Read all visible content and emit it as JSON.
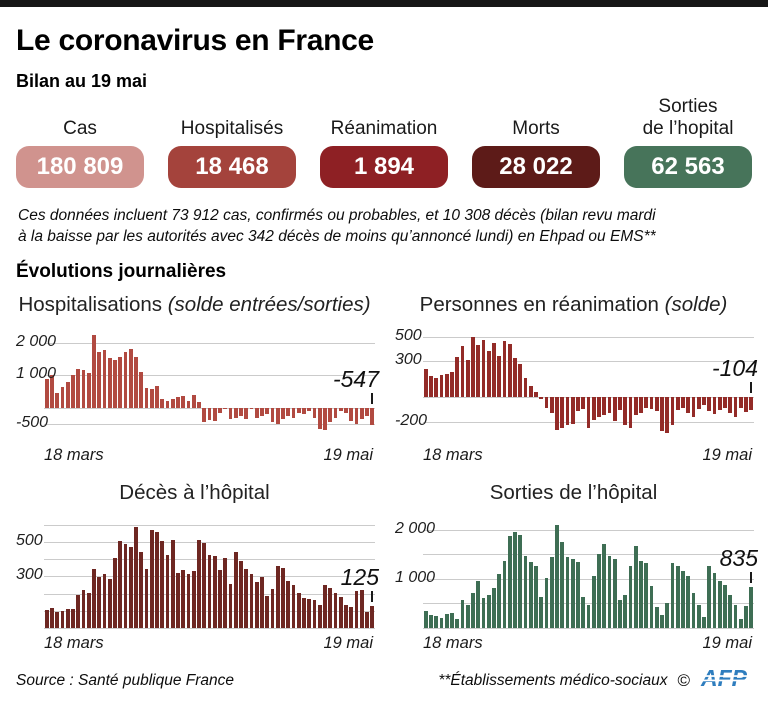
{
  "header": {
    "title": "Le coronavirus en France",
    "subtitle": "Bilan au 19 mai"
  },
  "stats": [
    {
      "label": "Cas",
      "value": "180 809",
      "color": "#d0938e"
    },
    {
      "label": "Hospitalisés",
      "value": "18 468",
      "color": "#a4433c"
    },
    {
      "label": "Réanimation",
      "value": "1 894",
      "color": "#8e2024"
    },
    {
      "label": "Morts",
      "value": "28 022",
      "color": "#5d1b18"
    },
    {
      "label_line1": "Sorties",
      "label_line2": "de l’hopital",
      "value": "62 563",
      "color": "#47745a"
    }
  ],
  "note": {
    "line1": "Ces données incluent 73 912 cas, confirmés ou probables, et 10 308 décès (bilan revu mardi",
    "line2": "à la baisse par les autorités avec 342 décès de moins qu’annoncé lundi) en Ehpad ou EMS**"
  },
  "section_title": "Évolutions journalières",
  "chart_data": [
    {
      "type": "bar",
      "title": "Hospitalisations",
      "subtitle": "(solde entrées/sorties)",
      "color": "#b14a41",
      "x_start_label": "18 mars",
      "x_end_label": "19 mai",
      "ylim": [
        -1000,
        2500
      ],
      "gridlines": [
        2000,
        1000,
        0,
        -500
      ],
      "yticks": [
        {
          "v": 2000,
          "label": "2 000"
        },
        {
          "v": 1000,
          "label": "1 000"
        },
        {
          "v": -500,
          "label": "-500"
        }
      ],
      "annotation": "-547",
      "values": [
        900,
        1000,
        440,
        640,
        800,
        1020,
        1180,
        1160,
        1080,
        2240,
        1720,
        1780,
        1520,
        1480,
        1560,
        1720,
        1820,
        1560,
        1100,
        620,
        560,
        660,
        260,
        210,
        260,
        320,
        360,
        210,
        400,
        160,
        -450,
        -380,
        -420,
        -160,
        -40,
        -360,
        -310,
        -260,
        -360,
        -60,
        -310,
        -260,
        -210,
        -460,
        -510,
        -360,
        -260,
        -310,
        -160,
        -210,
        -110,
        -310,
        -660,
        -710,
        -460,
        -310,
        -110,
        -160,
        -410,
        -510,
        -360,
        -250,
        -547
      ]
    },
    {
      "type": "bar",
      "title": "Personnes en réanimation",
      "subtitle": "(solde)",
      "color": "#932b28",
      "x_start_label": "18 mars",
      "x_end_label": "19 mai",
      "ylim": [
        -350,
        580
      ],
      "gridlines": [
        500,
        300,
        0,
        -200
      ],
      "yticks": [
        {
          "v": 500,
          "label": "500"
        },
        {
          "v": 300,
          "label": "300"
        },
        {
          "v": -200,
          "label": "-200"
        }
      ],
      "annotation": "-104",
      "values": [
        230,
        175,
        160,
        185,
        195,
        205,
        330,
        420,
        310,
        500,
        430,
        470,
        380,
        445,
        340,
        465,
        435,
        320,
        275,
        160,
        95,
        45,
        -15,
        -85,
        -125,
        -270,
        -250,
        -230,
        -220,
        -110,
        -95,
        -250,
        -185,
        -160,
        -145,
        -125,
        -195,
        -105,
        -225,
        -255,
        -145,
        -125,
        -85,
        -95,
        -115,
        -280,
        -290,
        -230,
        -105,
        -85,
        -125,
        -165,
        -95,
        -60,
        -115,
        -135,
        -100,
        -85,
        -130,
        -160,
        -90,
        -120,
        -104
      ]
    },
    {
      "type": "bar",
      "title": "Décès à l’hôpital",
      "subtitle": "",
      "color": "#6e2722",
      "x_start_label": "18 mars",
      "x_end_label": "19 mai",
      "ylim": [
        0,
        660
      ],
      "gridlines": [
        600,
        500,
        400,
        300,
        200,
        100,
        0
      ],
      "yticks": [
        {
          "v": 500,
          "label": "500"
        },
        {
          "v": 300,
          "label": "300"
        }
      ],
      "annotation": "125",
      "values": [
        105,
        115,
        90,
        100,
        110,
        112,
        190,
        220,
        205,
        345,
        295,
        315,
        285,
        410,
        505,
        490,
        475,
        590,
        445,
        345,
        570,
        560,
        505,
        425,
        515,
        320,
        335,
        315,
        330,
        515,
        495,
        425,
        420,
        335,
        410,
        255,
        445,
        390,
        345,
        315,
        270,
        295,
        185,
        225,
        360,
        350,
        275,
        250,
        205,
        175,
        170,
        160,
        135,
        250,
        235,
        205,
        180,
        135,
        120,
        215,
        220,
        95,
        125
      ]
    },
    {
      "type": "bar",
      "title": "Sorties de l’hôpital",
      "subtitle": "",
      "color": "#3e6e54",
      "x_start_label": "18 mars",
      "x_end_label": "19 mai",
      "ylim": [
        0,
        2300
      ],
      "gridlines": [
        2000,
        1500,
        1000,
        500,
        0
      ],
      "yticks": [
        {
          "v": 2000,
          "label": "2 000"
        },
        {
          "v": 1000,
          "label": "1 000"
        }
      ],
      "annotation": "835",
      "values": [
        350,
        260,
        240,
        210,
        290,
        310,
        190,
        560,
        460,
        710,
        950,
        610,
        660,
        810,
        1100,
        1360,
        1870,
        1950,
        1900,
        1460,
        1350,
        1260,
        620,
        1010,
        1450,
        2100,
        1750,
        1450,
        1400,
        1350,
        620,
        460,
        1060,
        1500,
        1710,
        1460,
        1410,
        560,
        660,
        1260,
        1660,
        1360,
        1310,
        860,
        420,
        260,
        510,
        1310,
        1260,
        1160,
        1060,
        710,
        460,
        230,
        1260,
        1110,
        950,
        870,
        660,
        470,
        180,
        450,
        835
      ]
    }
  ],
  "footer": {
    "source": "Source : Santé publique France",
    "note": "**Établissements médico-sociaux",
    "copyright": "©",
    "afp": "AFP",
    "afp_color": "#2e7dbe"
  }
}
